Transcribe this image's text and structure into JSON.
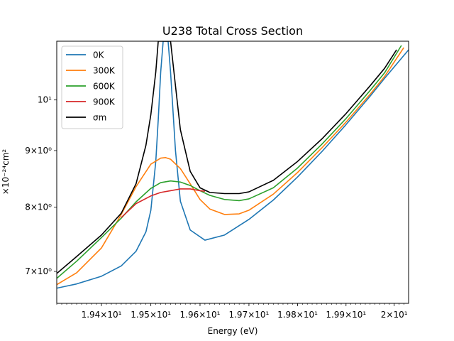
{
  "chart_data": {
    "type": "line",
    "title": "U238 Total Cross Section",
    "xlabel": "Energy (eV)",
    "ylabel": "×10⁻²⁴cm²",
    "xscale": "log",
    "yscale": "log",
    "xlim": [
      19.31,
      20.03
    ],
    "ylim": [
      6.55,
      11.3
    ],
    "grid": false,
    "legend_position": "top-left",
    "x_ticks": [
      {
        "value": 19.4,
        "label": "1.94×10¹"
      },
      {
        "value": 19.5,
        "label": "1.95×10¹"
      },
      {
        "value": 19.6,
        "label": "1.96×10¹"
      },
      {
        "value": 19.7,
        "label": "1.97×10¹"
      },
      {
        "value": 19.8,
        "label": "1.98×10¹"
      },
      {
        "value": 19.9,
        "label": "1.99×10¹"
      },
      {
        "value": 20.0,
        "label": "2×10¹"
      }
    ],
    "y_ticks": [
      {
        "value": 7,
        "label": "7×10⁰"
      },
      {
        "value": 8,
        "label": "8×10⁰"
      },
      {
        "value": 9,
        "label": "9×10⁰"
      },
      {
        "value": 10,
        "label": "10¹"
      }
    ],
    "series": [
      {
        "name": "0K",
        "color": "#1f77b4",
        "x": [
          19.31,
          19.35,
          19.4,
          19.44,
          19.47,
          19.49,
          19.5,
          19.51,
          19.515,
          19.52,
          19.525,
          19.53,
          19.535,
          19.54,
          19.55,
          19.56,
          19.58,
          19.61,
          19.65,
          19.7,
          19.75,
          19.8,
          19.85,
          19.9,
          19.95,
          19.98,
          20.03
        ],
        "y": [
          6.76,
          6.82,
          6.93,
          7.08,
          7.3,
          7.6,
          7.95,
          8.8,
          9.6,
          10.6,
          11.3,
          11.3,
          11.3,
          10.6,
          9.0,
          8.1,
          7.63,
          7.47,
          7.55,
          7.8,
          8.12,
          8.52,
          8.98,
          9.5,
          10.08,
          10.46,
          11.1
        ]
      },
      {
        "name": "300K",
        "color": "#ff7f0e",
        "x": [
          19.31,
          19.35,
          19.4,
          19.44,
          19.47,
          19.5,
          19.52,
          19.53,
          19.54,
          19.56,
          19.58,
          19.6,
          19.62,
          19.65,
          19.68,
          19.7,
          19.75,
          19.8,
          19.85,
          19.9,
          19.95,
          19.98,
          20.02
        ],
        "y": [
          6.81,
          6.98,
          7.35,
          7.88,
          8.35,
          8.75,
          8.86,
          8.87,
          8.84,
          8.67,
          8.4,
          8.13,
          7.97,
          7.88,
          7.89,
          7.95,
          8.22,
          8.6,
          9.05,
          9.55,
          10.12,
          10.5,
          11.15
        ]
      },
      {
        "name": "600K",
        "color": "#2ca02c",
        "x": [
          19.31,
          19.35,
          19.4,
          19.44,
          19.47,
          19.5,
          19.52,
          19.54,
          19.56,
          19.58,
          19.6,
          19.62,
          19.65,
          19.68,
          19.7,
          19.75,
          19.8,
          19.85,
          19.9,
          19.95,
          19.98,
          20.015
        ],
        "y": [
          6.9,
          7.15,
          7.51,
          7.82,
          8.09,
          8.32,
          8.42,
          8.45,
          8.43,
          8.37,
          8.28,
          8.2,
          8.13,
          8.11,
          8.14,
          8.33,
          8.68,
          9.12,
          9.62,
          10.2,
          10.58,
          11.2
        ]
      },
      {
        "name": "900K",
        "color": "#d62728",
        "x": [
          19.44,
          19.47,
          19.5,
          19.52,
          19.54,
          19.56,
          19.58,
          19.6,
          19.61
        ],
        "y": [
          7.83,
          8.06,
          8.19,
          8.25,
          8.28,
          8.31,
          8.31,
          8.28,
          8.27
        ]
      },
      {
        "name": "σm",
        "color": "#000000",
        "x": [
          19.31,
          19.35,
          19.4,
          19.44,
          19.47,
          19.49,
          19.5,
          19.51,
          19.515,
          19.52,
          19.525,
          19.53,
          19.535,
          19.54,
          19.55,
          19.56,
          19.58,
          19.6,
          19.62,
          19.65,
          19.68,
          19.7,
          19.75,
          19.8,
          19.85,
          19.9,
          19.95,
          19.98,
          20.005
        ],
        "y": [
          6.97,
          7.22,
          7.55,
          7.9,
          8.4,
          9.1,
          9.7,
          10.6,
          11.3,
          11.3,
          11.3,
          11.3,
          11.3,
          11.3,
          10.3,
          9.4,
          8.62,
          8.33,
          8.25,
          8.23,
          8.23,
          8.26,
          8.46,
          8.8,
          9.22,
          9.72,
          10.3,
          10.68,
          11.1
        ]
      }
    ]
  }
}
